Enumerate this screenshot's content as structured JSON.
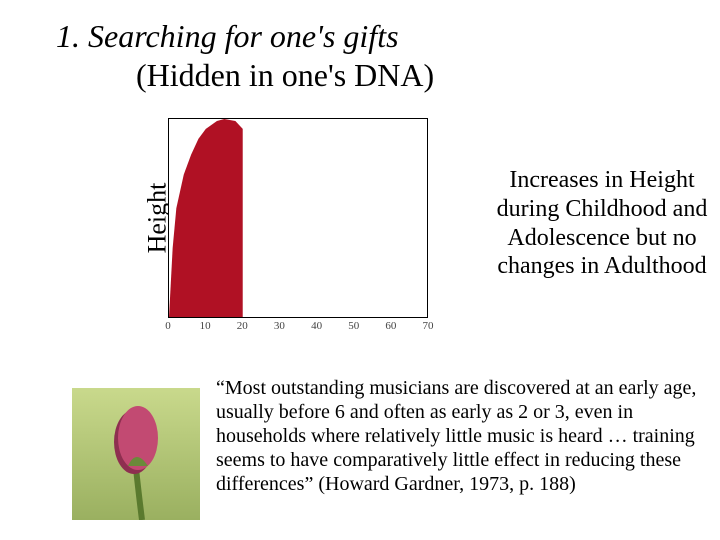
{
  "title": {
    "line1": "1. Searching for one's gifts",
    "line2": "(Hidden in one's DNA)"
  },
  "chart": {
    "type": "area",
    "y_label": "Height",
    "x_ticks": [
      0,
      10,
      20,
      30,
      40,
      50,
      60,
      70
    ],
    "x_min": 0,
    "x_max": 70,
    "fill_color": "#b01124",
    "border_color": "#000000",
    "background_color": "#ffffff",
    "tick_fontsize": 11,
    "label_fontsize": 26,
    "curve_points": [
      {
        "x": 0,
        "y": 0
      },
      {
        "x": 1,
        "y": 0.35
      },
      {
        "x": 2,
        "y": 0.55
      },
      {
        "x": 4,
        "y": 0.72
      },
      {
        "x": 6,
        "y": 0.82
      },
      {
        "x": 8,
        "y": 0.9
      },
      {
        "x": 10,
        "y": 0.95
      },
      {
        "x": 13,
        "y": 0.99
      },
      {
        "x": 15,
        "y": 1.0
      },
      {
        "x": 18,
        "y": 0.99
      },
      {
        "x": 20,
        "y": 0.95
      },
      {
        "x": 20,
        "y": 0.0
      }
    ]
  },
  "side_text": "Increases in Height during Childhood and Adolescence but no changes in Adulthood",
  "quote": "“Most outstanding musicians are discovered at an early age, usually before 6 and often as early as 2 or 3, even in households where relatively little music is heard … training seems to have comparatively little effect in reducing these differences” (Howard Gardner, 1973, p. 188)",
  "bud_image": {
    "bg_color": "#b7c97a",
    "bud_color": "#c24a72",
    "bud_shade": "#8e2f50",
    "stem_color": "#5a7a2e"
  },
  "fonts": {
    "title_size": 32,
    "side_text_size": 24,
    "quote_size": 20
  }
}
